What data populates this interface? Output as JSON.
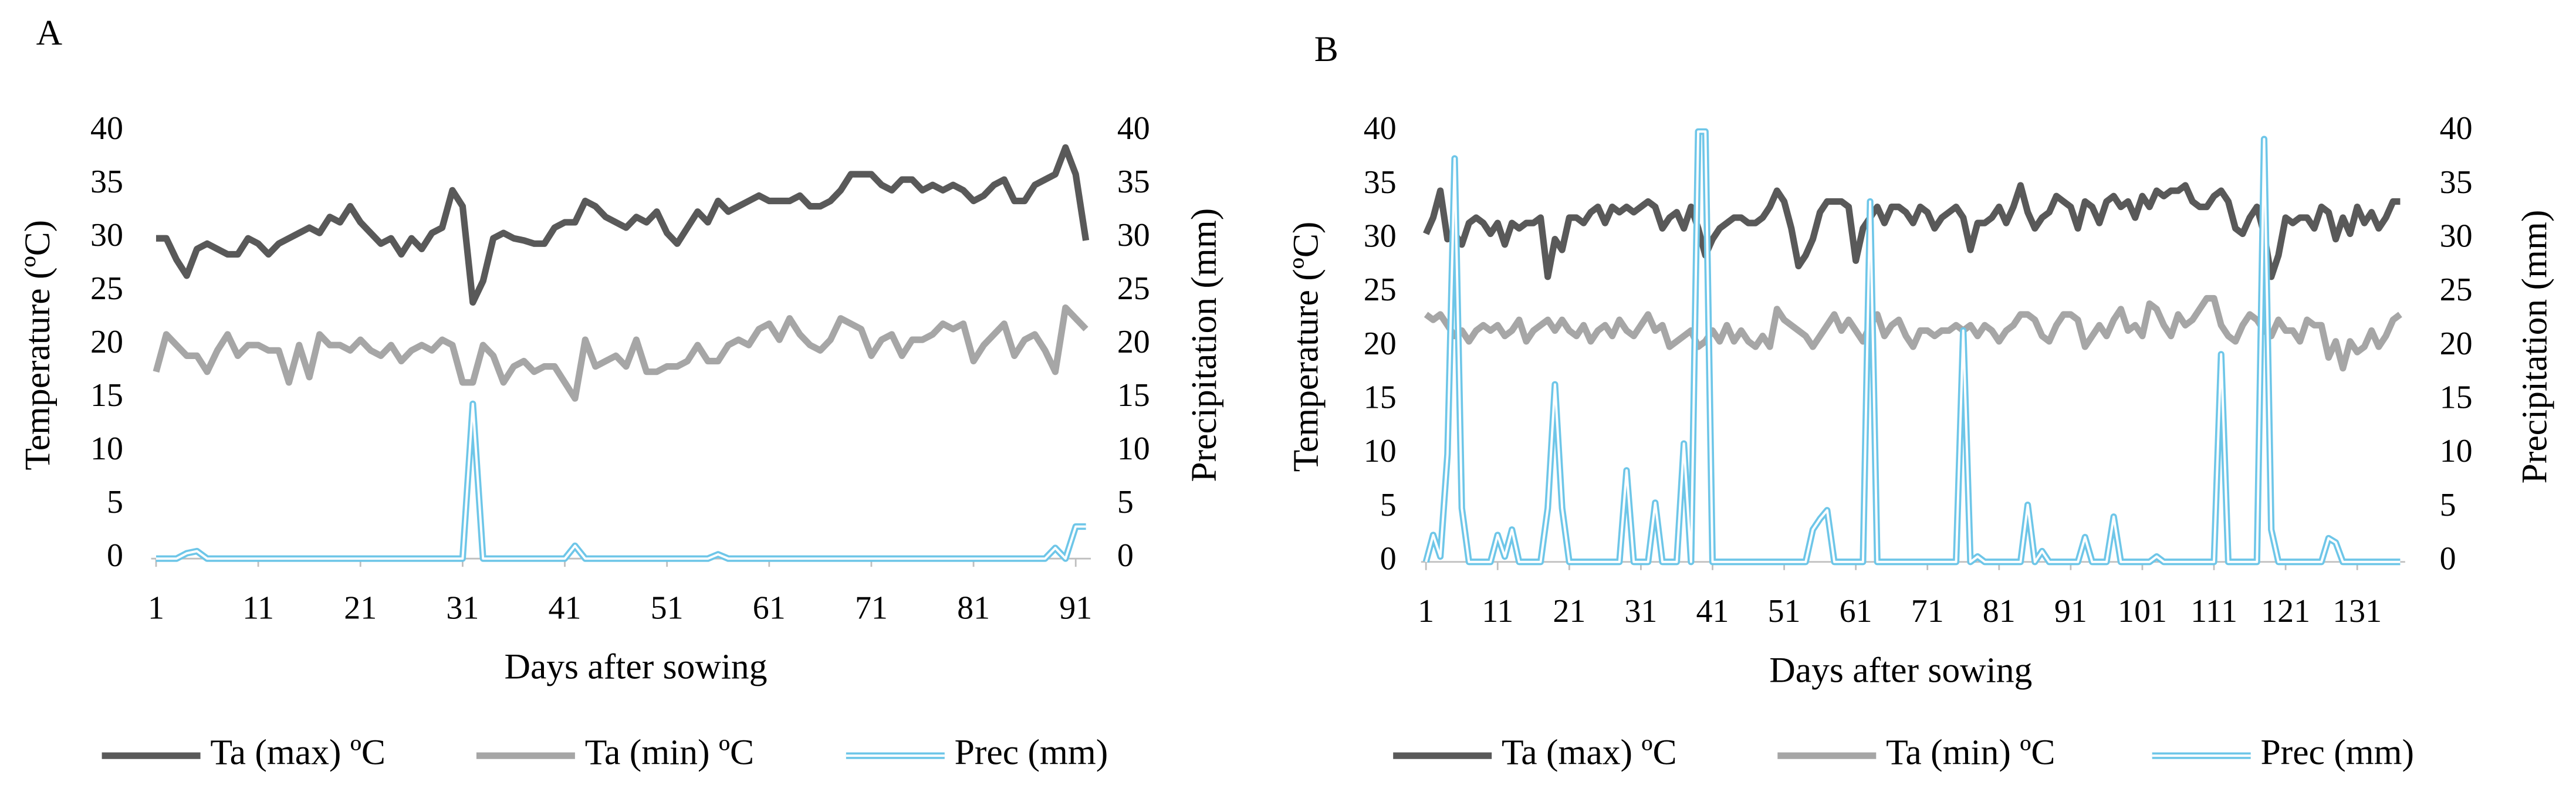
{
  "chart_data": [
    {
      "type": "line",
      "panel_label": "A",
      "xlabel": "Days after sowing",
      "ylabel": "Temperature (ºC)",
      "y2label": "Precipitation (mm)",
      "x": [
        1,
        2,
        3,
        4,
        5,
        6,
        7,
        8,
        9,
        10,
        11,
        12,
        13,
        14,
        15,
        16,
        17,
        18,
        19,
        20,
        21,
        22,
        23,
        24,
        25,
        26,
        27,
        28,
        29,
        30,
        31,
        32,
        33,
        34,
        35,
        36,
        37,
        38,
        39,
        40,
        41,
        42,
        43,
        44,
        45,
        46,
        47,
        48,
        49,
        50,
        51,
        52,
        53,
        54,
        55,
        56,
        57,
        58,
        59,
        60,
        61,
        62,
        63,
        64,
        65,
        66,
        67,
        68,
        69,
        70,
        71,
        72,
        73,
        74,
        75,
        76,
        77,
        78,
        79,
        80,
        81,
        82,
        83,
        84,
        85,
        86,
        87,
        88,
        89,
        90,
        91,
        92
      ],
      "xlim": [
        1,
        92
      ],
      "xticks": [
        1,
        11,
        21,
        31,
        41,
        51,
        61,
        71,
        81,
        91
      ],
      "ylim": [
        0,
        40
      ],
      "yticks": [
        0,
        5,
        10,
        15,
        20,
        25,
        30,
        35,
        40
      ],
      "y2lim": [
        0,
        40
      ],
      "y2ticks": [
        0,
        5,
        10,
        15,
        20,
        25,
        30,
        35,
        40
      ],
      "series": [
        {
          "name": "Ta (max) ºC",
          "color": "#595959",
          "values": [
            30,
            30,
            28,
            26.5,
            29,
            29.5,
            29,
            28.5,
            28.5,
            30,
            29.5,
            28.5,
            29.5,
            30,
            30.5,
            31,
            30.5,
            32,
            31.5,
            33,
            31.5,
            30.5,
            29.5,
            30,
            28.5,
            30,
            29,
            30.5,
            31,
            34.5,
            33,
            24,
            26,
            30,
            30.5,
            30,
            29.8,
            29.5,
            29.5,
            31,
            31.5,
            31.5,
            33.5,
            33,
            32,
            31.5,
            31,
            32,
            31.5,
            32.5,
            30.5,
            29.5,
            31,
            32.5,
            31.5,
            33.5,
            32.5,
            33,
            33.5,
            34,
            33.5,
            33.5,
            33.5,
            34,
            33,
            33,
            33.5,
            34.5,
            36,
            36,
            36,
            35,
            34.5,
            35.5,
            35.5,
            34.5,
            35,
            34.5,
            35,
            34.5,
            33.5,
            34,
            35,
            35.5,
            33.5,
            33.5,
            35,
            35.5,
            36,
            38.5,
            36,
            29.8
          ]
        },
        {
          "name": "Ta (min) ºC",
          "color": "#a6a6a6",
          "values": [
            17.5,
            21,
            20,
            19,
            19,
            17.5,
            19.5,
            21,
            19,
            20,
            20,
            19.5,
            19.5,
            16.5,
            20,
            17,
            21,
            20,
            20,
            19.5,
            20.5,
            19.5,
            19,
            20,
            18.5,
            19.5,
            20,
            19.5,
            20.5,
            20,
            16.5,
            16.5,
            20,
            19,
            16.5,
            18,
            18.5,
            17.5,
            18,
            18,
            16.5,
            15,
            20.5,
            18,
            18.5,
            19,
            18,
            20.5,
            17.5,
            17.5,
            18,
            18,
            18.5,
            20,
            18.5,
            18.5,
            20,
            20.5,
            20,
            21.5,
            22,
            20.5,
            22.5,
            21,
            20,
            19.5,
            20.5,
            22.5,
            22,
            21.5,
            19,
            20.5,
            21,
            19,
            20.5,
            20.5,
            21,
            22,
            21.5,
            22,
            18.5,
            20,
            21,
            22,
            19,
            20.5,
            21,
            19.5,
            17.5,
            23.5,
            22.5,
            21.5
          ]
        },
        {
          "name": "Prec (mm)",
          "color": "#6ec6e8",
          "axis": "y2",
          "values": [
            0,
            0,
            0,
            0.5,
            0.7,
            0,
            0,
            0,
            0,
            0,
            0,
            0,
            0,
            0,
            0,
            0,
            0,
            0,
            0,
            0,
            0,
            0,
            0,
            0,
            0,
            0,
            0,
            0,
            0,
            0,
            0,
            14.5,
            0,
            0,
            0,
            0,
            0,
            0,
            0,
            0,
            0,
            1.2,
            0,
            0,
            0,
            0,
            0,
            0,
            0,
            0,
            0,
            0,
            0,
            0,
            0,
            0.4,
            0,
            0,
            0,
            0,
            0,
            0,
            0,
            0,
            0,
            0,
            0,
            0,
            0,
            0,
            0,
            0,
            0,
            0,
            0,
            0,
            0,
            0,
            0,
            0,
            0,
            0,
            0,
            0,
            0,
            0,
            0,
            0,
            1,
            0,
            3,
            3
          ]
        }
      ]
    },
    {
      "type": "line",
      "panel_label": "B",
      "xlabel": "Days after sowing",
      "ylabel": "Temperature (ºC)",
      "y2label": "Precipitation (mm)",
      "x": [
        1,
        2,
        3,
        4,
        5,
        6,
        7,
        8,
        9,
        10,
        11,
        12,
        13,
        14,
        15,
        16,
        17,
        18,
        19,
        20,
        21,
        22,
        23,
        24,
        25,
        26,
        27,
        28,
        29,
        30,
        31,
        32,
        33,
        34,
        35,
        36,
        37,
        38,
        39,
        40,
        41,
        42,
        43,
        44,
        45,
        46,
        47,
        48,
        49,
        50,
        51,
        52,
        53,
        54,
        55,
        56,
        57,
        58,
        59,
        60,
        61,
        62,
        63,
        64,
        65,
        66,
        67,
        68,
        69,
        70,
        71,
        72,
        73,
        74,
        75,
        76,
        77,
        78,
        79,
        80,
        81,
        82,
        83,
        84,
        85,
        86,
        87,
        88,
        89,
        90,
        91,
        92,
        93,
        94,
        95,
        96,
        97,
        98,
        99,
        100,
        101,
        102,
        103,
        104,
        105,
        106,
        107,
        108,
        109,
        110,
        111,
        112,
        113,
        114,
        115,
        116,
        117,
        118,
        119,
        120,
        121,
        122,
        123,
        124,
        125,
        126,
        127,
        128,
        129,
        130,
        131,
        132,
        133,
        134,
        135,
        136,
        137
      ],
      "xlim": [
        1,
        137
      ],
      "xticks": [
        1,
        11,
        21,
        31,
        41,
        51,
        61,
        71,
        81,
        91,
        101,
        111,
        121,
        131
      ],
      "ylim": [
        0,
        40
      ],
      "yticks": [
        0,
        5,
        10,
        15,
        20,
        25,
        30,
        35,
        40
      ],
      "y2lim": [
        0,
        40
      ],
      "y2ticks": [
        0,
        5,
        10,
        15,
        20,
        25,
        30,
        35,
        40
      ],
      "series": [
        {
          "name": "Ta (max) ºC",
          "color": "#595959",
          "values": [
            30.5,
            32,
            34.5,
            30,
            30.5,
            29.5,
            31.5,
            32,
            31.5,
            30.5,
            31.5,
            29.5,
            31.5,
            31,
            31.5,
            31.5,
            32,
            26.5,
            30,
            29,
            32,
            32,
            31.5,
            32.5,
            33,
            31.5,
            33,
            32.5,
            33,
            32.5,
            33,
            33.5,
            33,
            31,
            32,
            32.5,
            31,
            33,
            31,
            28.5,
            30,
            31,
            31.5,
            32,
            32,
            31.5,
            31.5,
            32,
            33,
            34.5,
            33.5,
            31,
            27.5,
            28.5,
            30,
            32.5,
            33.5,
            33.5,
            33.5,
            33,
            28,
            31,
            32,
            33,
            31.5,
            33,
            33,
            32.5,
            31.5,
            33,
            32.5,
            31,
            32,
            32.5,
            33,
            32,
            29,
            31.5,
            31.5,
            32,
            33,
            31.5,
            33,
            35,
            32.5,
            31,
            32,
            32.5,
            34,
            33.5,
            33,
            31,
            33.5,
            33,
            31.5,
            33.5,
            34,
            33,
            33.5,
            32,
            34,
            33,
            34.5,
            34,
            34.5,
            34.5,
            35,
            33.5,
            33,
            33,
            34,
            34.5,
            33.5,
            31,
            30.5,
            32,
            33,
            30.5,
            26.5,
            28.5,
            32,
            31.5,
            32,
            32,
            31,
            33,
            32.5,
            30,
            32,
            30.5,
            33,
            31.5,
            32.5,
            31,
            32,
            33.5,
            33.5
          ]
        },
        {
          "name": "Ta (min) ºC",
          "color": "#a6a6a6",
          "values": [
            23,
            22.5,
            23,
            22,
            21,
            21.5,
            20.5,
            21.5,
            22,
            21.5,
            22,
            21,
            21.5,
            22.5,
            20.5,
            21.5,
            22,
            22.5,
            21.5,
            22.5,
            21.5,
            21,
            22,
            20.5,
            21.5,
            22,
            21,
            22.5,
            21.5,
            21,
            22,
            23,
            21.5,
            22,
            20,
            20.5,
            21,
            21.5,
            20,
            20.5,
            21.5,
            20.5,
            22,
            20.5,
            21.5,
            20.5,
            20,
            21,
            20,
            23.5,
            22.5,
            22,
            21.5,
            21,
            20,
            21,
            22,
            23,
            21.5,
            22.5,
            21.5,
            20.5,
            22,
            23,
            21,
            22,
            22.5,
            21,
            20,
            21.5,
            21.5,
            21,
            21.5,
            21.5,
            22,
            21.5,
            22,
            21,
            22,
            21.5,
            20.5,
            21.5,
            22,
            23,
            23,
            22.5,
            21,
            20.5,
            22,
            23,
            23,
            22.5,
            20,
            21,
            22,
            21,
            22.5,
            23.5,
            21.5,
            22,
            21,
            24,
            23.5,
            22,
            21,
            23,
            22,
            22.5,
            23.5,
            24.5,
            24.5,
            22,
            21,
            20.5,
            22,
            23,
            22.5,
            21.5,
            21,
            22.5,
            21.5,
            21.5,
            20.5,
            22.5,
            22,
            22,
            19,
            20.5,
            18,
            20.5,
            19.5,
            20,
            21.5,
            20,
            21,
            22.5,
            23
          ]
        },
        {
          "name": "Prec (mm)",
          "color": "#6ec6e8",
          "axis": "y2",
          "values": [
            0,
            2.5,
            0.5,
            10,
            37.5,
            5,
            0,
            0,
            0,
            0,
            2.5,
            0.5,
            3,
            0,
            0,
            0,
            0,
            5,
            16.5,
            5,
            0,
            0,
            0,
            0,
            0,
            0,
            0,
            0,
            8.5,
            0,
            0,
            0,
            5.5,
            0,
            0,
            0,
            11,
            0,
            40,
            40,
            0,
            0,
            0,
            0,
            0,
            0,
            0,
            0,
            0,
            0,
            0,
            0,
            0,
            0,
            3,
            4,
            4.8,
            0,
            0,
            0,
            0,
            0,
            33.5,
            0,
            0,
            0,
            0,
            0,
            0,
            0,
            0,
            0,
            0,
            0,
            0,
            21.5,
            0,
            0.5,
            0,
            0,
            0,
            0,
            0,
            0,
            5.3,
            0,
            1,
            0,
            0,
            0,
            0,
            0,
            2.3,
            0,
            0,
            0,
            4.2,
            0,
            0,
            0,
            0,
            0,
            0.5,
            0,
            0,
            0,
            0,
            0,
            0,
            0,
            0,
            19.3,
            0,
            0,
            0,
            0,
            0,
            39.3,
            3,
            0,
            0,
            0,
            0,
            0,
            0,
            0,
            2.2,
            1.8,
            0,
            0,
            0,
            0,
            0,
            0,
            0,
            0,
            0
          ]
        }
      ]
    }
  ]
}
